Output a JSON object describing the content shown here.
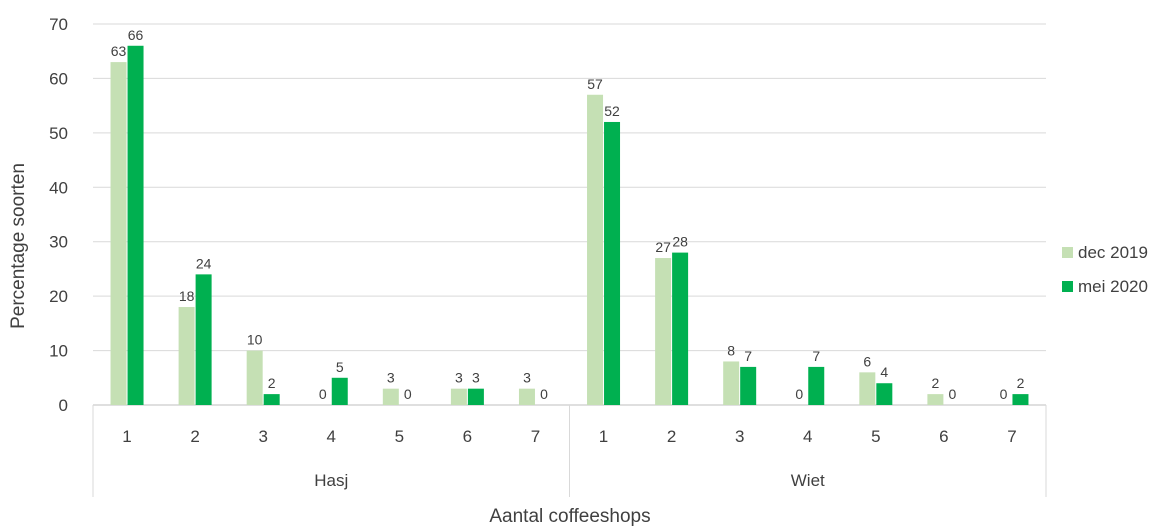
{
  "chart_data": {
    "type": "bar",
    "title": "",
    "xlabel": "Aantal coffeeshops",
    "ylabel": "Percentage soorten",
    "ylim": [
      0,
      70
    ],
    "yticks": [
      0,
      10,
      20,
      30,
      40,
      50,
      60,
      70
    ],
    "grid": true,
    "legend_position": "right",
    "groups": [
      {
        "name": "Hasj",
        "categories": [
          "1",
          "2",
          "3",
          "4",
          "5",
          "6",
          "7"
        ]
      },
      {
        "name": "Wiet",
        "categories": [
          "1",
          "2",
          "3",
          "4",
          "5",
          "6",
          "7"
        ]
      }
    ],
    "series": [
      {
        "name": "dec 2019",
        "color": "#c5e0b4",
        "values": [
          63,
          18,
          10,
          0,
          3,
          3,
          3,
          57,
          27,
          8,
          0,
          6,
          2,
          0
        ]
      },
      {
        "name": "mei 2020",
        "color": "#00b050",
        "values": [
          66,
          24,
          2,
          5,
          0,
          3,
          0,
          52,
          28,
          7,
          7,
          4,
          0,
          2
        ]
      }
    ]
  }
}
